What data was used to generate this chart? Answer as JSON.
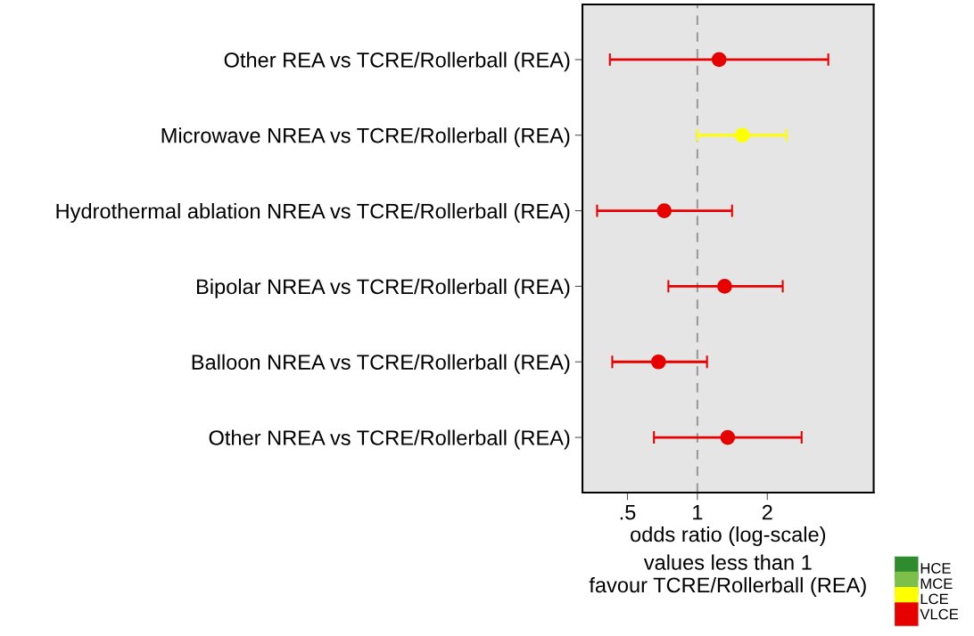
{
  "chart_data": {
    "type": "scatter",
    "orientation": "horizontal",
    "categories": [
      "Other REA vs TCRE/Rollerball (REA)",
      "Microwave NREA vs TCRE/Rollerball (REA)",
      "Hydrothermal ablation NREA vs TCRE/Rollerball (REA)",
      "Bipolar NREA vs TCRE/Rollerball (REA)",
      "Balloon NREA vs TCRE/Rollerball (REA)",
      "Other NREA vs TCRE/Rollerball (REA)"
    ],
    "series": [
      {
        "name": "HCE",
        "color": "#2e8b2e",
        "values": [
          null,
          null,
          null,
          null,
          null,
          null
        ],
        "errors": [
          null,
          null,
          null,
          null,
          null,
          null
        ]
      },
      {
        "name": "MCE",
        "color": "#7cc04a",
        "values": [
          null,
          null,
          null,
          null,
          null,
          null
        ],
        "errors": [
          null,
          null,
          null,
          null,
          null,
          null
        ]
      },
      {
        "name": "LCE",
        "color": "#ffff00",
        "values": [
          null,
          1.56,
          null,
          null,
          null,
          null
        ],
        "errors": [
          null,
          [
            1.0,
            2.42
          ],
          null,
          null,
          null,
          null
        ]
      },
      {
        "name": "VLCE",
        "color": "#e60000",
        "values": [
          1.24,
          null,
          0.72,
          1.31,
          0.68,
          1.35
        ],
        "errors": [
          [
            0.42,
            3.66
          ],
          null,
          [
            0.37,
            1.41
          ],
          [
            0.75,
            2.33
          ],
          [
            0.43,
            1.1
          ],
          [
            0.65,
            2.81
          ]
        ]
      }
    ],
    "xlabel": "odds ratio (log-scale)",
    "annotations": [
      "values less than 1\nfavour TCRE/Rollerball (REA)"
    ],
    "log": "x",
    "xlim": [
      0.32,
      5.74
    ],
    "xticks": [
      {
        "value": 0.5,
        "label": ".5"
      },
      1,
      2
    ],
    "ref_lines": [
      {
        "axis": "x",
        "value": 1,
        "color": "#999999",
        "line_style": "dashed"
      }
    ],
    "marker": "circle",
    "legend": "bottom right",
    "grid": false
  }
}
